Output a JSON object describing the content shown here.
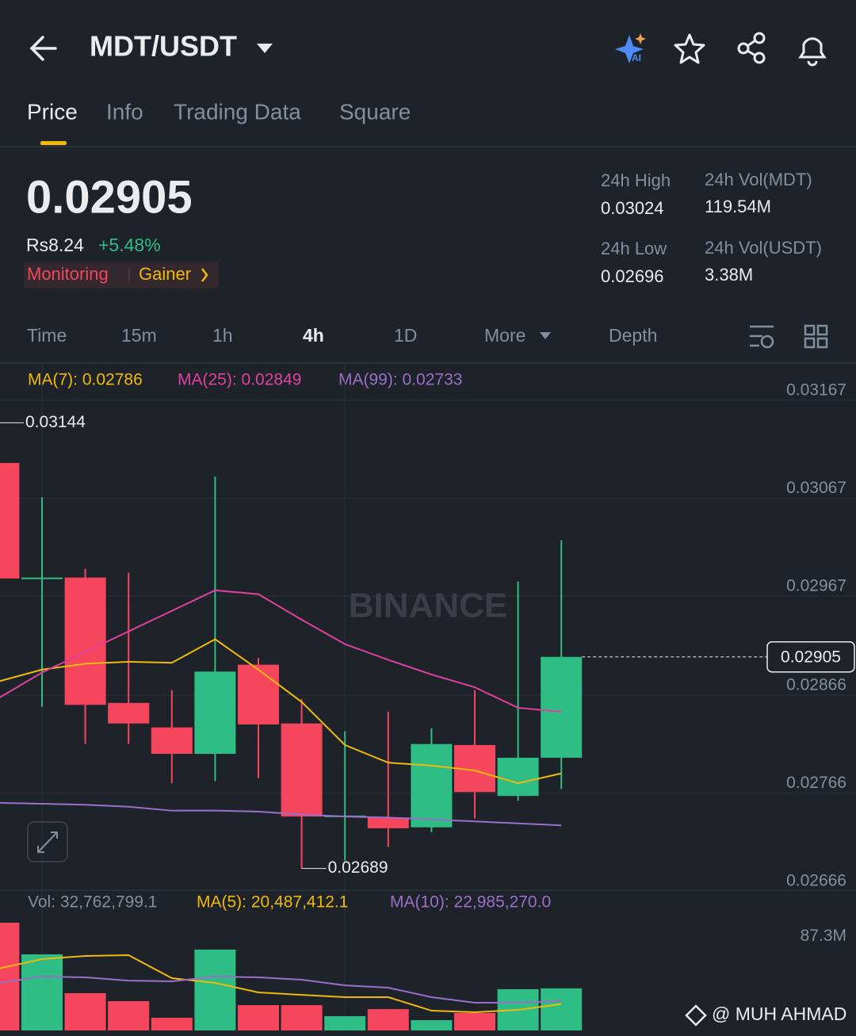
{
  "header": {
    "title": "MDT/USDT"
  },
  "tabs": [
    "Price",
    "Info",
    "Trading Data",
    "Square"
  ],
  "ticker": {
    "price": "0.02905",
    "fiat": "Rs8.24",
    "change": "+5.48%",
    "tags": [
      "Monitoring",
      "Gainer"
    ],
    "stats": [
      {
        "label": "24h High",
        "value": "0.03024"
      },
      {
        "label": "24h Vol(MDT)",
        "value": "119.54M"
      },
      {
        "label": "24h Low",
        "value": "0.02696"
      },
      {
        "label": "24h Vol(USDT)",
        "value": "3.38M"
      }
    ]
  },
  "intervals": [
    "Time",
    "15m",
    "1h",
    "4h",
    "1D",
    "More",
    "Depth"
  ],
  "chart": {
    "type": "candlestick",
    "ma_labels": [
      "MA(7): 0.02786",
      "MA(25): 0.02849",
      "MA(99): 0.02733"
    ],
    "ylim": [
      0.02666,
      0.03167
    ],
    "yticks": [
      0.03167,
      0.03067,
      0.02967,
      0.02866,
      0.02766,
      0.02666
    ],
    "current_price": 0.02905,
    "high_mark": 0.03144,
    "low_mark": 0.02689,
    "watermark": "BINANCE",
    "up_color": "#2ebd85",
    "down_color": "#f6465d",
    "open": [
      0.03103,
      0.02985,
      0.02986,
      0.02858,
      0.02833,
      0.02806,
      0.02897,
      0.02837,
      0.02742,
      0.02741,
      0.02731,
      0.02815,
      0.02763,
      0.02802
    ],
    "high": [
      0.03144,
      0.03068,
      0.02995,
      0.02991,
      0.02871,
      0.03089,
      0.02904,
      0.02862,
      0.02829,
      0.02849,
      0.02832,
      0.02871,
      0.02982,
      0.03024
    ],
    "low": [
      0.0298,
      0.02854,
      0.02816,
      0.02816,
      0.02776,
      0.02778,
      0.02781,
      0.02689,
      0.02697,
      0.02711,
      0.02726,
      0.0274,
      0.02758,
      0.0277
    ],
    "close": [
      0.02985,
      0.02986,
      0.02856,
      0.02837,
      0.02806,
      0.0289,
      0.02836,
      0.02742,
      0.02743,
      0.0273,
      0.02816,
      0.02767,
      0.02802,
      0.02905
    ],
    "ma": [
      {
        "color": "#f0b90b",
        "values": [
          0.0288,
          0.02892,
          0.02898,
          0.029,
          0.02899,
          0.02923,
          0.02892,
          0.02859,
          0.02815,
          0.02797,
          0.02794,
          0.02789,
          0.02776,
          0.02786
        ]
      },
      {
        "color": "#e0409f",
        "values": [
          0.02863,
          0.02889,
          0.0291,
          0.02931,
          0.02952,
          0.02973,
          0.02969,
          0.02943,
          0.02918,
          0.02902,
          0.02887,
          0.02874,
          0.02853,
          0.02849
        ]
      },
      {
        "color": "#9a6fc9",
        "values": [
          0.02756,
          0.02755,
          0.02754,
          0.02752,
          0.02748,
          0.02748,
          0.02747,
          0.02744,
          0.02742,
          0.02741,
          0.02739,
          0.02737,
          0.02735,
          0.02733
        ]
      }
    ],
    "volume": {
      "labels": [
        "Vol: 32,762,799.1",
        "MA(5): 20,487,412.1",
        "MA(10): 22,985,270.0"
      ],
      "ylim": [
        0,
        92.5
      ],
      "yticks": [
        {
          "value": 87.3,
          "label": "87.3M"
        }
      ],
      "values": [
        83.8,
        59.2,
        29.0,
        22.8,
        9.9,
        62.9,
        19.7,
        19.7,
        11.1,
        16.6,
        8.0,
        13.6,
        32.1,
        32.76
      ],
      "ma": [
        {
          "color": "#f0b90b",
          "values": [
            48.1,
            55.5,
            58.0,
            58.6,
            40.7,
            37.0,
            29.6,
            27.7,
            25.9,
            25.9,
            15.4,
            14.2,
            16.0,
            20.5
          ]
        },
        {
          "color": "#9a6fc9",
          "values": [
            37.0,
            41.9,
            41.3,
            38.8,
            38.2,
            41.9,
            41.3,
            39.5,
            35.1,
            33.3,
            25.9,
            21.6,
            21.6,
            23.0
          ]
        }
      ]
    }
  },
  "footer": {
    "credit": "@ MUH AHMAD"
  }
}
